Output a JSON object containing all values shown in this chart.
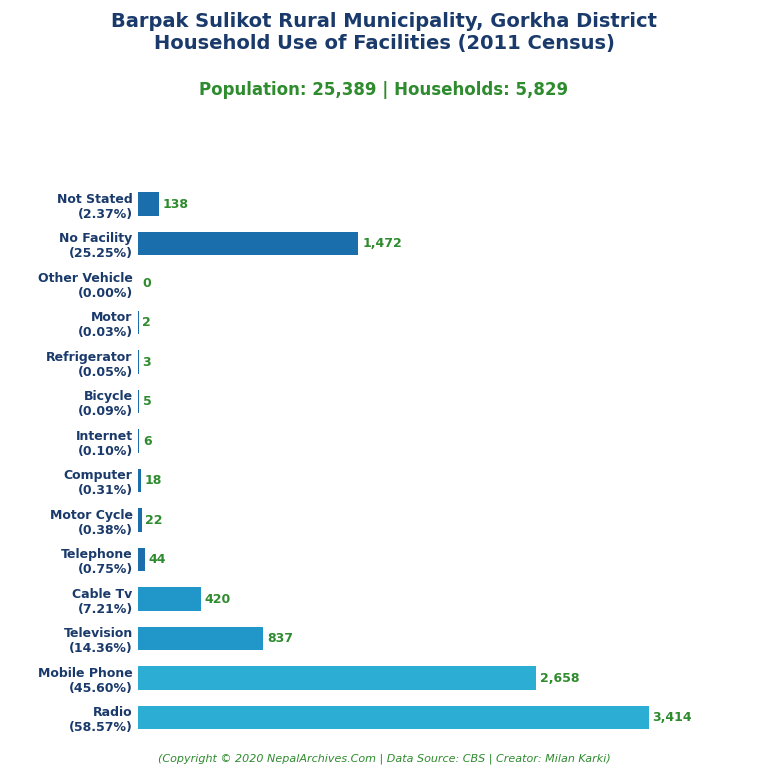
{
  "title_line1": "Barpak Sulikot Rural Municipality, Gorkha District",
  "title_line2": "Household Use of Facilities (2011 Census)",
  "subtitle": "Population: 25,389 | Households: 5,829",
  "copyright": "(Copyright © 2020 NepalArchives.Com | Data Source: CBS | Creator: Milan Karki)",
  "categories": [
    "Not Stated\n(2.37%)",
    "No Facility\n(25.25%)",
    "Other Vehicle\n(0.00%)",
    "Motor\n(0.03%)",
    "Refrigerator\n(0.05%)",
    "Bicycle\n(0.09%)",
    "Internet\n(0.10%)",
    "Computer\n(0.31%)",
    "Motor Cycle\n(0.38%)",
    "Telephone\n(0.75%)",
    "Cable Tv\n(7.21%)",
    "Television\n(14.36%)",
    "Mobile Phone\n(45.60%)",
    "Radio\n(58.57%)"
  ],
  "values": [
    138,
    1472,
    0,
    2,
    3,
    5,
    6,
    18,
    22,
    44,
    420,
    837,
    2658,
    3414
  ],
  "value_labels": [
    "138",
    "1,472",
    "0",
    "2",
    "3",
    "5",
    "6",
    "18",
    "22",
    "44",
    "420",
    "837",
    "2,658",
    "3,414"
  ],
  "colors": [
    "#1a6eab",
    "#1a6eab",
    "#1a6eab",
    "#1a6eab",
    "#1a6eab",
    "#1a6eab",
    "#1a6eab",
    "#1a6eab",
    "#1a6eab",
    "#1a6eab",
    "#2196C9",
    "#2196C9",
    "#2badd4",
    "#2badd4"
  ],
  "title_color": "#1a3a6b",
  "subtitle_color": "#2e8b2e",
  "value_color": "#2e8b2e",
  "ylabel_color": "#1a3a6b",
  "copyright_color": "#2e8b2e",
  "background_color": "#ffffff",
  "xlim": [
    0,
    3800
  ],
  "title_fontsize": 14,
  "subtitle_fontsize": 12,
  "label_fontsize": 9,
  "value_fontsize": 9,
  "copyright_fontsize": 8
}
